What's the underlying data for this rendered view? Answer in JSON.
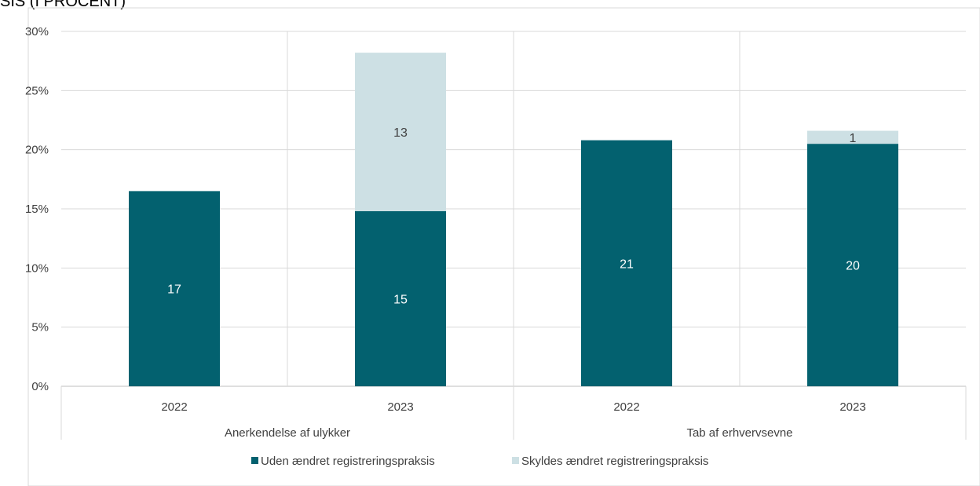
{
  "chart_data": {
    "type": "bar",
    "stacked": true,
    "title": "SIS (I PROCENT)",
    "xlabel": "",
    "ylabel": "",
    "ylim": [
      0,
      30
    ],
    "yticks": [
      "0%",
      "5%",
      "10%",
      "15%",
      "20%",
      "25%",
      "30%"
    ],
    "ytick_values": [
      0,
      5,
      10,
      15,
      20,
      25,
      30
    ],
    "grid": true,
    "legend_position": "bottom",
    "groups": [
      {
        "label": "Anerkendelse af ulykker",
        "categories": [
          "2022",
          "2023"
        ]
      },
      {
        "label": "Tab af erhvervsevne",
        "categories": [
          "2022",
          "2023"
        ]
      }
    ],
    "categories": [
      "2022",
      "2023",
      "2022",
      "2023"
    ],
    "series": [
      {
        "name": "Uden ændret registreringspraksis",
        "color": "#03616f",
        "values": [
          16.5,
          14.8,
          20.8,
          20.5
        ],
        "labels": [
          "17",
          "15",
          "21",
          "20"
        ]
      },
      {
        "name": "Skyldes ændret registreringspraksis",
        "color": "#cde0e4",
        "values": [
          0,
          13.4,
          0,
          1.1
        ],
        "labels": [
          "",
          "13",
          "",
          "1"
        ]
      }
    ]
  }
}
